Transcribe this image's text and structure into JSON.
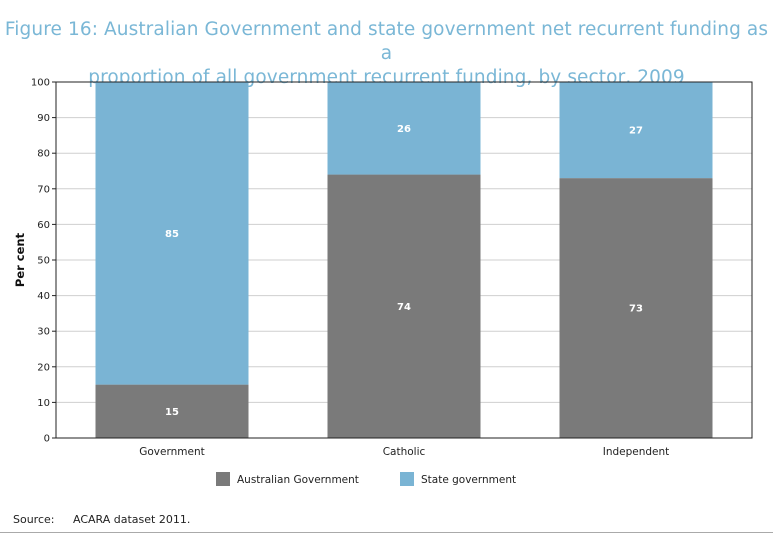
{
  "title": {
    "line1": "Figure 16: Australian Government and state government net recurrent funding as a",
    "line2": "proportion of all government recurrent funding, by sector, 2009"
  },
  "source": {
    "label": "Source:",
    "text": "ACARA dataset 2011."
  },
  "chart_data": {
    "type": "bar",
    "stacked": true,
    "categories": [
      "Government",
      "Catholic",
      "Independent"
    ],
    "series": [
      {
        "name": "Australian Government",
        "values": [
          15,
          74,
          73
        ],
        "color": "#7a7a7a"
      },
      {
        "name": "State government",
        "values": [
          85,
          26,
          27
        ],
        "color": "#7ab4d4"
      }
    ],
    "ylabel": "Per cent",
    "ylim": [
      0,
      100
    ],
    "yticks": [
      0,
      10,
      20,
      30,
      40,
      50,
      60,
      70,
      80,
      90,
      100
    ],
    "grid": true,
    "legend": "bottom-center",
    "label_color": "#ffffff"
  }
}
